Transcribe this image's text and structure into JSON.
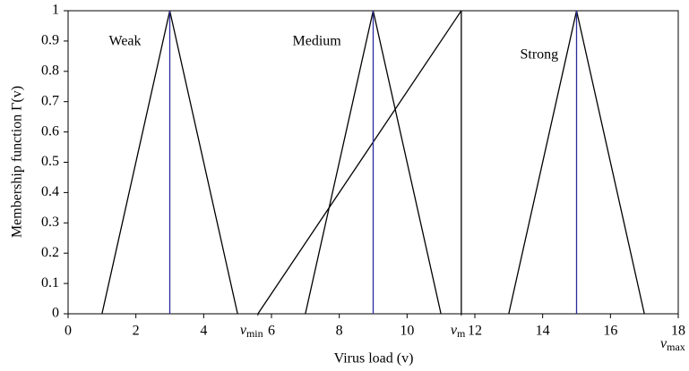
{
  "chart_data": {
    "type": "line",
    "xlabel": "Virus load (v)",
    "ylabel": "Membership function Γ(v)",
    "xlim": [
      0,
      18
    ],
    "xticks": [
      0,
      2,
      4,
      6,
      8,
      10,
      12,
      14,
      16,
      18
    ],
    "ylim": [
      0,
      1
    ],
    "yticks": [
      0,
      0.1,
      0.2,
      0.3,
      0.4,
      0.5,
      0.6,
      0.7,
      0.8,
      0.9,
      1
    ],
    "series": [
      {
        "name": "Weak",
        "color": "#000000",
        "x": [
          1,
          3,
          5
        ],
        "values": [
          0,
          1,
          0
        ]
      },
      {
        "name": "Medium",
        "color": "#000000",
        "x": [
          7,
          9,
          11
        ],
        "values": [
          0,
          1,
          0
        ]
      },
      {
        "name": "Strong",
        "color": "#000000",
        "x": [
          13,
          15,
          17
        ],
        "values": [
          0,
          1,
          0
        ]
      },
      {
        "color": "#000000",
        "x": [
          5.6,
          11.6
        ],
        "values": [
          0,
          1
        ]
      },
      {
        "color": "#000000",
        "x": [
          11.6,
          11.6
        ],
        "values": [
          0,
          1
        ]
      },
      {
        "color": "#2b2b9e",
        "x": [
          3,
          3
        ],
        "values": [
          0,
          1
        ]
      },
      {
        "color": "#2b2b9e",
        "x": [
          9,
          9
        ],
        "values": [
          0,
          1
        ]
      },
      {
        "color": "#2b2b9e",
        "x": [
          15,
          15
        ],
        "values": [
          0,
          1
        ]
      }
    ],
    "annotations": [
      {
        "symbol": "v",
        "subscript": "min",
        "x": 5.6
      },
      {
        "symbol": "v",
        "subscript": "m",
        "x": 11.6
      },
      {
        "symbol": "v",
        "subscript": "max",
        "x": 18
      }
    ]
  }
}
